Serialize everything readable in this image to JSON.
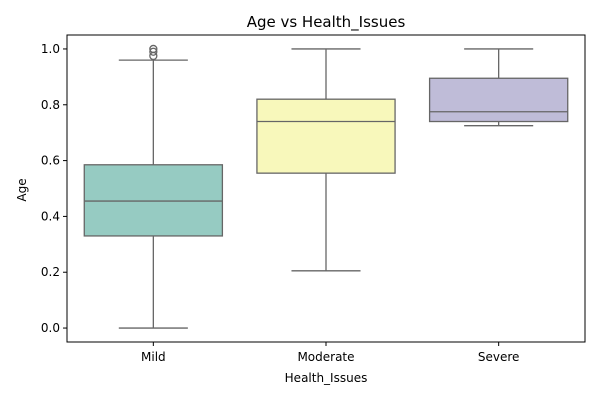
{
  "chart_data": {
    "type": "box",
    "title": "Age vs Health_Issues",
    "xlabel": "Health_Issues",
    "ylabel": "Age",
    "ylim": [
      -0.05,
      1.05
    ],
    "yticks": [
      0.0,
      0.2,
      0.4,
      0.6,
      0.8,
      1.0
    ],
    "ytick_labels": [
      "0.0",
      "0.2",
      "0.4",
      "0.6",
      "0.8",
      "1.0"
    ],
    "grid": false,
    "legend": "none",
    "categories": [
      "Mild",
      "Moderate",
      "Severe"
    ],
    "boxes": [
      {
        "category": "Mild",
        "color": "#96cbc2",
        "whisker_low": 0.0,
        "q1": 0.33,
        "median": 0.455,
        "q3": 0.585,
        "whisker_high": 0.96,
        "outliers": [
          0.975,
          0.99,
          1.0
        ]
      },
      {
        "category": "Moderate",
        "color": "#f8f8bb",
        "whisker_low": 0.205,
        "q1": 0.555,
        "median": 0.74,
        "q3": 0.82,
        "whisker_high": 1.0,
        "outliers": []
      },
      {
        "category": "Severe",
        "color": "#bfbcd8",
        "whisker_low": 0.725,
        "q1": 0.74,
        "median": 0.775,
        "q3": 0.895,
        "whisker_high": 1.0,
        "outliers": []
      }
    ],
    "line_color": "#666666"
  }
}
